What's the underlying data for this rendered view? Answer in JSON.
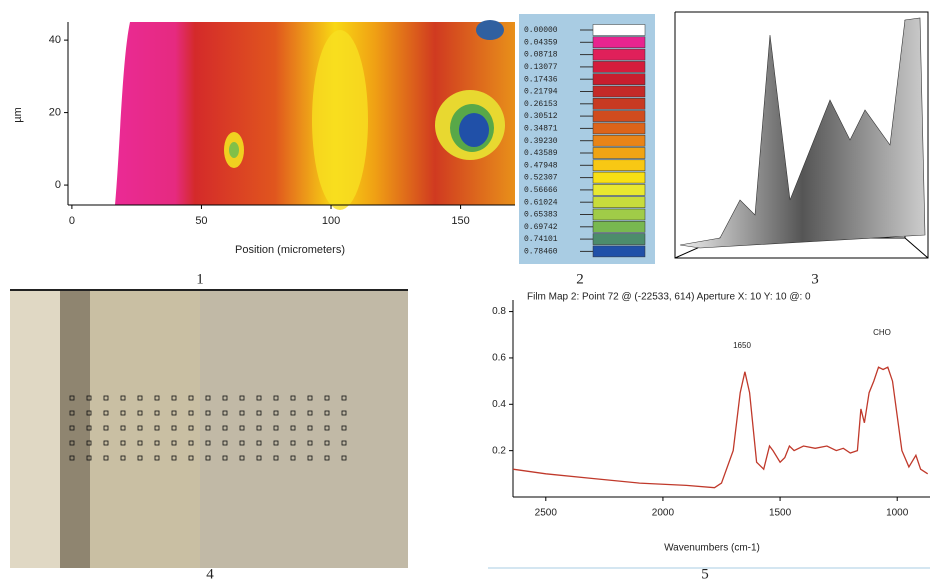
{
  "chart_data": [
    {
      "type": "contour",
      "caption": "1",
      "xlabel": "Position (micrometers)",
      "ylabel": "µm",
      "xlim": [
        -1.5,
        171
      ],
      "ylim": [
        -5.5,
        45
      ],
      "xticks": [
        0,
        50,
        100,
        150
      ],
      "yticks": [
        0,
        20,
        40
      ]
    },
    {
      "type": "colorbar",
      "caption": "2",
      "values": [
        0,
        0.04359,
        0.08718,
        0.13077,
        0.17436,
        0.21794,
        0.26153,
        0.30512,
        0.34871,
        0.3923,
        0.43589,
        0.47948,
        0.52307,
        0.56666,
        0.61024,
        0.65383,
        0.69742,
        0.74101,
        0.7846
      ],
      "value_labels": [
        "0.00000",
        "0.04359",
        "0.08718",
        "0.13077",
        "0.17436",
        "0.21794",
        "0.26153",
        "0.30512",
        "0.34871",
        "0.39230",
        "0.43589",
        "0.47948",
        "0.52307",
        "0.56666",
        "0.61024",
        "0.65383",
        "0.69742",
        "0.74101",
        "0.78460"
      ],
      "colors": [
        "#ffffff",
        "#e8248f",
        "#e0205a",
        "#d41c3c",
        "#c81e2e",
        "#c42a28",
        "#c83a22",
        "#d04c1e",
        "#dc641a",
        "#e88418",
        "#f0a414",
        "#f8c814",
        "#f8e014",
        "#e8e830",
        "#c8dc3c",
        "#a0cc48",
        "#78b850",
        "#4c8c6c",
        "#2050a8"
      ]
    },
    {
      "type": "surface",
      "caption": "3"
    },
    {
      "type": "image",
      "caption": "4"
    },
    {
      "type": "line",
      "caption": "5",
      "title": "Film Map 2: Point 72 @ (-22533, 614) Aperture X: 10 Y: 10 @: 0",
      "xlabel": "Wavenumbers (cm-1)",
      "annotations": [
        "1650",
        "CHO"
      ],
      "color": "#c0392b",
      "xlim": [
        2640,
        860
      ],
      "ylim": [
        0,
        0.85
      ],
      "xticks": [
        2500,
        2000,
        1500,
        1000
      ],
      "yticks": [
        0.2,
        0.4,
        0.6,
        0.8
      ],
      "x": [
        2640,
        2500,
        2300,
        2100,
        1900,
        1780,
        1750,
        1700,
        1670,
        1650,
        1630,
        1600,
        1570,
        1545,
        1530,
        1500,
        1480,
        1460,
        1440,
        1400,
        1350,
        1300,
        1260,
        1230,
        1200,
        1170,
        1155,
        1140,
        1120,
        1100,
        1080,
        1060,
        1040,
        1020,
        1000,
        980,
        950,
        920,
        900,
        870
      ],
      "values": [
        0.12,
        0.1,
        0.08,
        0.06,
        0.05,
        0.04,
        0.06,
        0.2,
        0.45,
        0.54,
        0.45,
        0.15,
        0.12,
        0.22,
        0.2,
        0.15,
        0.17,
        0.22,
        0.2,
        0.22,
        0.21,
        0.22,
        0.2,
        0.21,
        0.19,
        0.2,
        0.38,
        0.32,
        0.45,
        0.5,
        0.56,
        0.55,
        0.56,
        0.5,
        0.35,
        0.2,
        0.13,
        0.18,
        0.12,
        0.1
      ]
    }
  ]
}
